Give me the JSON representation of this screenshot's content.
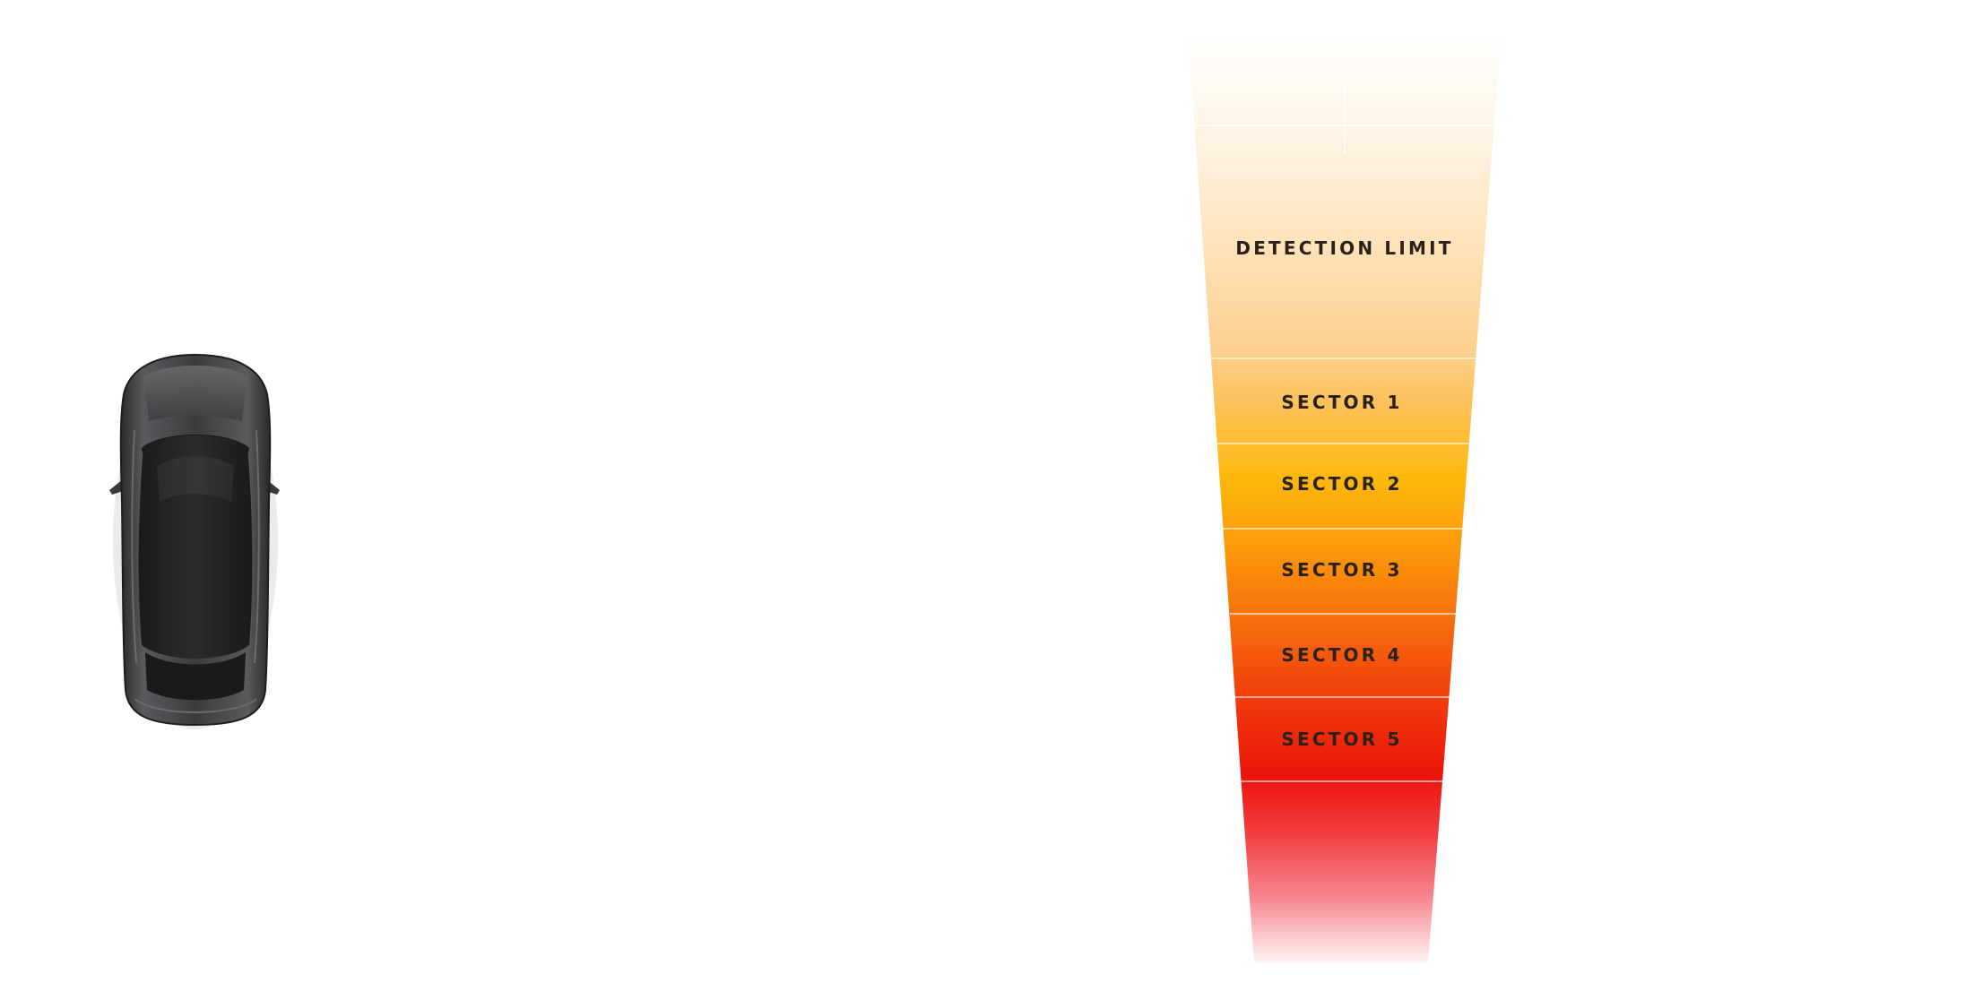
{
  "diagram": {
    "zones": [
      {
        "id": "detection-limit",
        "label": "DETECTION LIMIT"
      },
      {
        "id": "sector-1",
        "label": "SECTOR 1"
      },
      {
        "id": "sector-2",
        "label": "SECTOR 2"
      },
      {
        "id": "sector-3",
        "label": "SECTOR 3"
      },
      {
        "id": "sector-4",
        "label": "SECTOR 4"
      },
      {
        "id": "sector-5",
        "label": "SECTOR 5"
      }
    ],
    "colors": {
      "near": "#ee1a0b",
      "mid": "#fbb40b",
      "far": "#fde3b6",
      "car_body": "#3a3a3c",
      "car_glass": "#111113"
    },
    "car_icon": "car-top-view-icon"
  }
}
